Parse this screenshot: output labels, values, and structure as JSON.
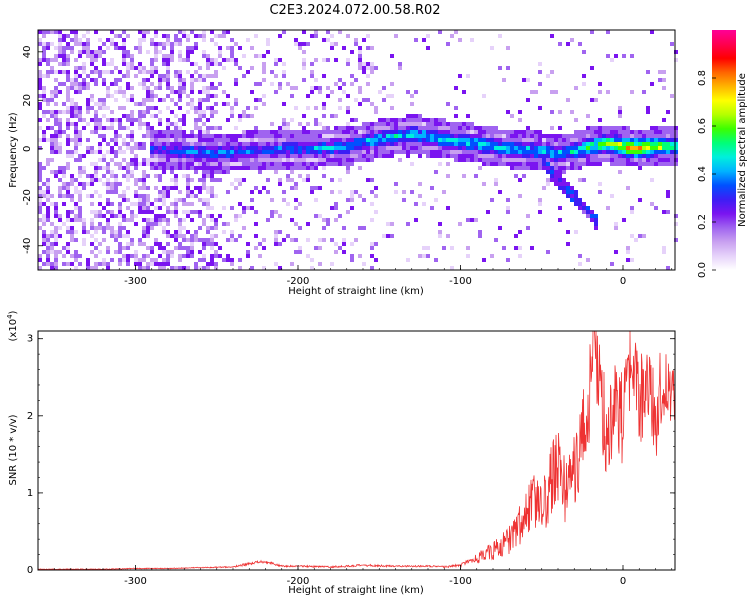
{
  "title": "C2E3.2024.072.00.58.R02",
  "colors": {
    "snr_line": "#ee3333",
    "colormap": [
      "#ffffff",
      "#e6d2fa",
      "#c8a0f0",
      "#a064f0",
      "#7a14f0",
      "#3c1ef5",
      "#0050ff",
      "#00b4ff",
      "#00f0dc",
      "#00ff78",
      "#3cff00",
      "#b4ff00",
      "#ffff00",
      "#ffb400",
      "#ff6400",
      "#ff0000",
      "#ff0050",
      "#ff0096"
    ]
  },
  "chart_data": [
    {
      "type": "heatmap",
      "xlabel": "Height of straight line (km)",
      "ylabel": "Frequency (Hz)",
      "xlim": [
        -360,
        32
      ],
      "ylim": [
        -50,
        49
      ],
      "x_ticks": [
        -300,
        -200,
        -100,
        0
      ],
      "y_ticks": [
        -40,
        -20,
        0,
        20,
        40
      ],
      "x_tick_labels": [
        "-300",
        "-200",
        "-100",
        "0"
      ],
      "y_tick_labels": [
        "-40",
        "-20",
        "0",
        "20",
        "40"
      ],
      "colorbar": {
        "label": "Normalized spectral amplitude",
        "range": [
          0,
          1
        ],
        "ticks": [
          0.0,
          0.2,
          0.4,
          0.6,
          0.8
        ],
        "tick_labels": [
          "0.0",
          "0.2",
          "0.4",
          "0.6",
          "0.8"
        ]
      },
      "ridge": {
        "description": "bright band of spectral energy near 0 Hz",
        "x": [
          -290,
          -270,
          -250,
          -230,
          -210,
          -190,
          -170,
          -150,
          -130,
          -110,
          -90,
          -70,
          -50,
          -40,
          -30,
          -20,
          -10,
          0,
          10,
          20,
          30
        ],
        "center_hz": [
          0,
          -1,
          -2,
          -1,
          0,
          0,
          1,
          4,
          6,
          4,
          2,
          0,
          -1,
          -2,
          -1,
          1,
          2,
          1,
          0,
          1,
          1
        ],
        "peak_amplitude": [
          0.35,
          0.4,
          0.45,
          0.4,
          0.4,
          0.45,
          0.45,
          0.5,
          0.5,
          0.5,
          0.5,
          0.5,
          0.5,
          0.45,
          0.5,
          0.6,
          0.7,
          0.8,
          0.85,
          0.75,
          0.6
        ]
      },
      "branch": {
        "description": "faint descending branch",
        "x": [
          -50,
          -40,
          -30,
          -20,
          -15
        ],
        "center_hz": [
          -5,
          -13,
          -20,
          -27,
          -32
        ]
      }
    },
    {
      "type": "line",
      "xlabel": "Height of straight line (km)",
      "ylabel": "SNR (10 * v/v)",
      "multiplier_label": "(x10",
      "multiplier_exp": "4",
      "multiplier_close": ")",
      "xlim": [
        -360,
        32
      ],
      "ylim": [
        0,
        3.1
      ],
      "x_ticks": [
        -300,
        -200,
        -100,
        0
      ],
      "y_ticks": [
        0,
        1,
        2,
        3
      ],
      "x_tick_labels": [
        "-300",
        "-200",
        "-100",
        "0"
      ],
      "y_tick_labels": [
        "0",
        "1",
        "2",
        "3"
      ],
      "series": [
        {
          "color": "#ee3333",
          "x": [
            -360,
            -340,
            -320,
            -300,
            -280,
            -260,
            -240,
            -230,
            -220,
            -210,
            -200,
            -180,
            -160,
            -140,
            -120,
            -110,
            -100,
            -95,
            -90,
            -85,
            -80,
            -75,
            -70,
            -65,
            -60,
            -55,
            -50,
            -45,
            -40,
            -35,
            -30,
            -25,
            -20,
            -18,
            -15,
            -12,
            -10,
            -5,
            0,
            5,
            10,
            15,
            20,
            25,
            30,
            32
          ],
          "y": [
            0.01,
            0.01,
            0.01,
            0.02,
            0.02,
            0.03,
            0.04,
            0.08,
            0.11,
            0.05,
            0.05,
            0.04,
            0.06,
            0.05,
            0.05,
            0.04,
            0.06,
            0.1,
            0.15,
            0.2,
            0.25,
            0.3,
            0.4,
            0.55,
            0.7,
            0.9,
            0.75,
            1.1,
            1.4,
            1.0,
            1.3,
            1.7,
            2.3,
            3.1,
            2.5,
            2.0,
            1.8,
            2.2,
            1.9,
            2.6,
            2.2,
            2.4,
            2.0,
            2.5,
            2.3,
            2.3
          ],
          "noise_amplitude": [
            0.005,
            0.005,
            0.005,
            0.005,
            0.005,
            0.006,
            0.008,
            0.02,
            0.02,
            0.01,
            0.01,
            0.01,
            0.015,
            0.01,
            0.01,
            0.01,
            0.02,
            0.04,
            0.06,
            0.1,
            0.12,
            0.15,
            0.2,
            0.25,
            0.3,
            0.35,
            0.35,
            0.45,
            0.5,
            0.45,
            0.5,
            0.6,
            0.7,
            0.5,
            0.6,
            0.65,
            0.6,
            0.7,
            0.6,
            0.6,
            0.6,
            0.6,
            0.6,
            0.5,
            0.4,
            0.4
          ]
        }
      ]
    }
  ]
}
